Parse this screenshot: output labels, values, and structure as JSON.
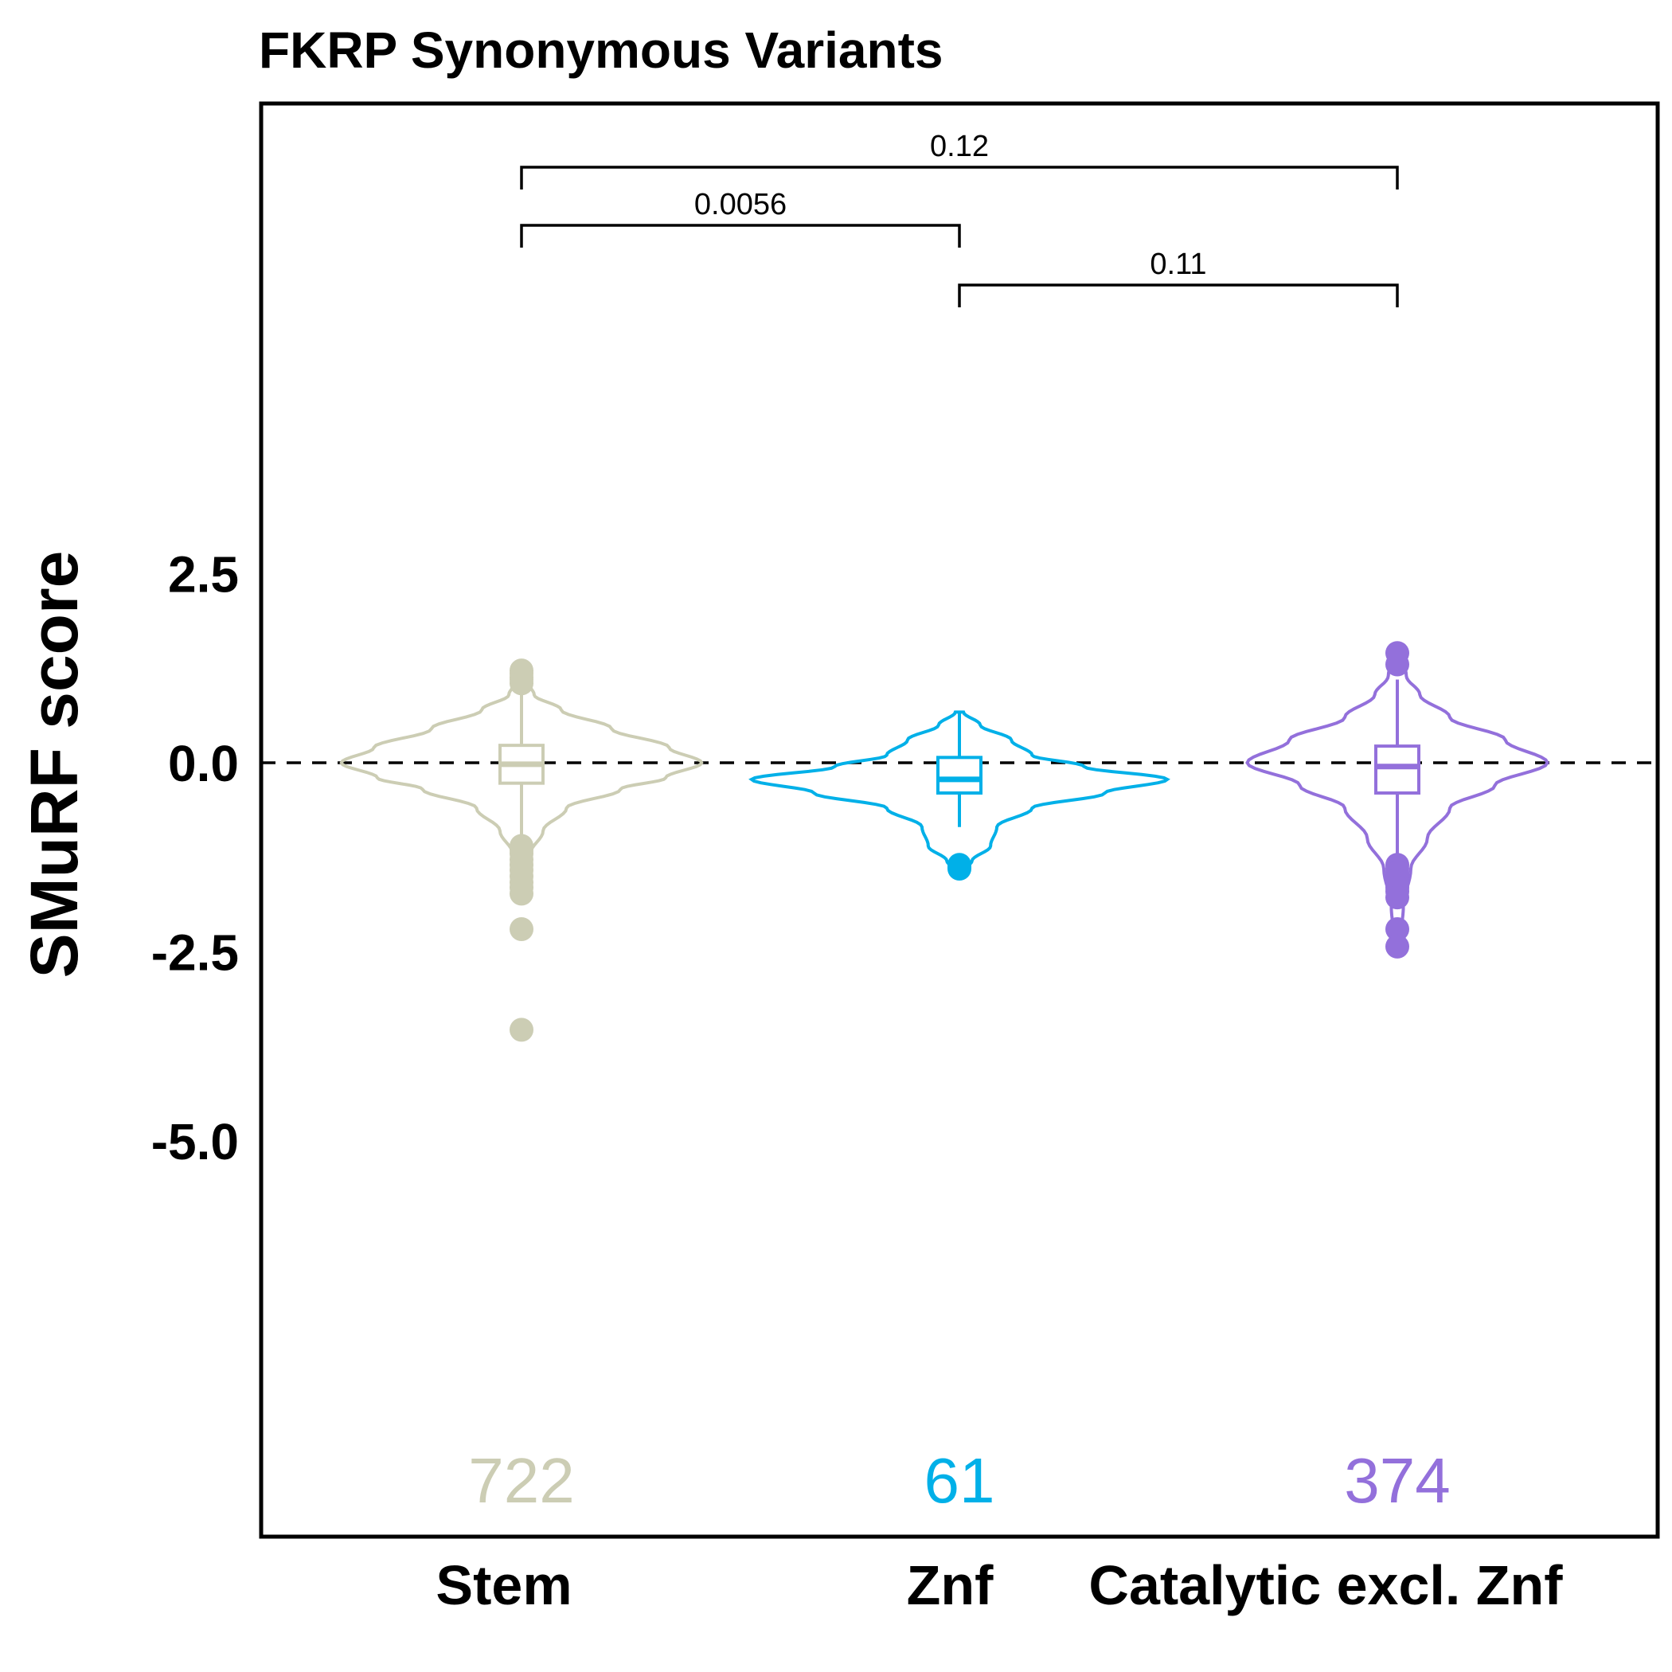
{
  "chart_data": {
    "type": "violin",
    "title": "FKRP Synonymous Variants",
    "xlabel": "",
    "ylabel": "SMuRF score",
    "ylim": [
      -5.0,
      5.0
    ],
    "yticks": [
      "2.5",
      "0.0",
      "-2.5",
      "-5.0"
    ],
    "reference_line": {
      "y": 0.0,
      "style": "dashed"
    },
    "grid": false,
    "categories": [
      "Stem",
      "Znf",
      "Catalytic excl. Znf"
    ],
    "groups": [
      {
        "category": "Stem",
        "color": "#cccdb4",
        "n": "722",
        "violin": {
          "min": -1.5,
          "max": 1.2,
          "max_halfwidth": 0.78,
          "profile": [
            [
              -1.5,
              0.02
            ],
            [
              -1.2,
              0.05
            ],
            [
              -0.9,
              0.12
            ],
            [
              -0.6,
              0.25
            ],
            [
              -0.35,
              0.55
            ],
            [
              -0.2,
              0.8
            ],
            [
              0.0,
              1.0
            ],
            [
              0.2,
              0.82
            ],
            [
              0.45,
              0.5
            ],
            [
              0.7,
              0.22
            ],
            [
              0.9,
              0.07
            ],
            [
              1.05,
              0.04
            ],
            [
              1.2,
              0.02
            ]
          ]
        },
        "box": {
          "q1": -0.27,
          "median": -0.02,
          "q3": 0.23,
          "whisker_low": -1.35,
          "whisker_high": 1.05
        },
        "outliers": [
          1.22,
          1.18,
          1.13,
          1.1,
          1.05,
          -1.1,
          -1.15,
          -1.2,
          -1.28,
          -1.35,
          -1.42,
          -1.5,
          -1.58,
          -1.65,
          -1.73,
          -2.2,
          -3.53
        ]
      },
      {
        "category": "Znf",
        "color": "#00b0e8",
        "n": "61",
        "violin": {
          "min": -1.42,
          "max": 0.67,
          "max_halfwidth": 0.9,
          "profile": [
            [
              -1.42,
              0.02
            ],
            [
              -1.3,
              0.06
            ],
            [
              -1.1,
              0.15
            ],
            [
              -0.85,
              0.18
            ],
            [
              -0.6,
              0.35
            ],
            [
              -0.4,
              0.7
            ],
            [
              -0.22,
              1.0
            ],
            [
              -0.05,
              0.6
            ],
            [
              0.1,
              0.35
            ],
            [
              0.3,
              0.25
            ],
            [
              0.5,
              0.1
            ],
            [
              0.67,
              0.02
            ]
          ]
        },
        "box": {
          "q1": -0.4,
          "median": -0.22,
          "q3": 0.07,
          "whisker_low": -0.85,
          "whisker_high": 0.67
        },
        "outliers": [
          -1.4,
          -1.35,
          -1.38
        ]
      },
      {
        "category": "Catalytic excl. Znf",
        "color": "#9370db",
        "n": "374",
        "violin": {
          "min": -2.42,
          "max": 1.45,
          "max_halfwidth": 0.65,
          "profile": [
            [
              -2.42,
              0.02
            ],
            [
              -2.2,
              0.03
            ],
            [
              -1.9,
              0.04
            ],
            [
              -1.4,
              0.09
            ],
            [
              -1.0,
              0.2
            ],
            [
              -0.6,
              0.35
            ],
            [
              -0.3,
              0.65
            ],
            [
              0.0,
              1.0
            ],
            [
              0.3,
              0.72
            ],
            [
              0.6,
              0.35
            ],
            [
              0.9,
              0.15
            ],
            [
              1.15,
              0.06
            ],
            [
              1.45,
              0.02
            ]
          ]
        },
        "box": {
          "q1": -0.4,
          "median": -0.05,
          "q3": 0.22,
          "whisker_low": -1.35,
          "whisker_high": 1.1
        },
        "outliers": [
          1.45,
          1.3,
          -1.35,
          -1.4,
          -1.45,
          -1.5,
          -1.55,
          -1.6,
          -1.65,
          -1.7,
          -1.78,
          -2.2,
          -2.43
        ]
      }
    ],
    "comparisons": [
      {
        "from": "Stem",
        "to": "Catalytic excl. Znf",
        "label": "0.12"
      },
      {
        "from": "Stem",
        "to": "Znf",
        "label": "0.0056"
      },
      {
        "from": "Znf",
        "to": "Catalytic excl. Znf",
        "label": "0.11"
      }
    ]
  }
}
